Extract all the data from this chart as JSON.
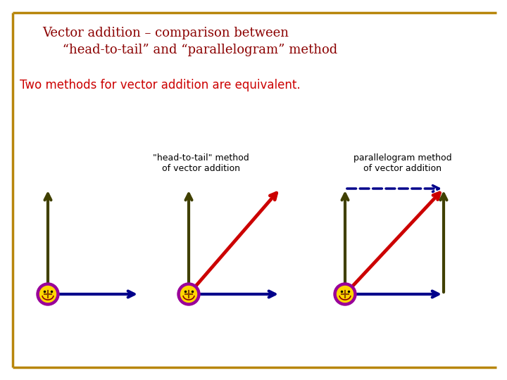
{
  "title_line1": "Vector addition – comparison between",
  "title_line2": "     “head-to-tail” and “parallelogram” method",
  "subtitle": "Two methods for vector addition are equivalent.",
  "title_color": "#8B0000",
  "subtitle_color": "#CC0000",
  "background_color": "#FFFFFF",
  "border_color": "#B8860B",
  "label1": "\"head-to-tail\" method\nof vector addition",
  "label2": "parallelogram method\nof vector addition",
  "arrow_blue": "#00008B",
  "arrow_dark": "#404000",
  "arrow_red": "#CC0000",
  "smiley_purple": "#990099",
  "smiley_yellow": "#FFD700"
}
